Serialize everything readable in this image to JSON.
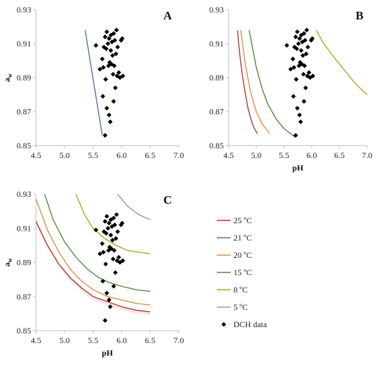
{
  "chart_data": [
    {
      "type": "scatter",
      "panel": "A",
      "xlabel": "",
      "ylabel": "aw",
      "xlim": [
        4.5,
        7.0
      ],
      "ylim": [
        0.85,
        0.93
      ],
      "xticks": [
        "4.5",
        "5.0",
        "5.5",
        "6.0",
        "6.5",
        "7.0"
      ],
      "yticks": [
        "0.85",
        "0.87",
        "0.89",
        "0.91",
        "0.93"
      ],
      "series": [
        {
          "name": "21 ºC",
          "color": "#4f6fb0",
          "kind": "line",
          "x": [
            5.36,
            5.66
          ],
          "y": [
            0.918,
            0.856
          ]
        }
      ]
    },
    {
      "type": "scatter",
      "panel": "B",
      "xlabel": "pH",
      "ylabel": "",
      "xlim": [
        4.5,
        7.0
      ],
      "ylim": [
        0.85,
        0.93
      ],
      "xticks": [
        "4.5",
        "5.0",
        "5.5",
        "6.0",
        "6.5",
        "7.0"
      ],
      "yticks": [
        "0.85",
        "0.87",
        "0.89",
        "0.91",
        "0.93"
      ],
      "series": [
        {
          "name": "25 ºC",
          "color": "#a93a3a",
          "kind": "line",
          "x": [
            4.66,
            4.7,
            4.75,
            4.8,
            4.85,
            4.9,
            4.95,
            5.02
          ],
          "y": [
            0.918,
            0.904,
            0.891,
            0.881,
            0.872,
            0.866,
            0.861,
            0.857
          ]
        },
        {
          "name": "20 ºC",
          "color": "#d9904a",
          "kind": "line",
          "x": [
            4.72,
            4.8,
            4.9,
            5.0,
            5.1,
            5.24
          ],
          "y": [
            0.918,
            0.898,
            0.881,
            0.87,
            0.863,
            0.857
          ]
        },
        {
          "name": "15 ºC",
          "color": "#4e8a3a",
          "kind": "line",
          "x": [
            4.87,
            5.0,
            5.1,
            5.2,
            5.35,
            5.5,
            5.7
          ],
          "y": [
            0.918,
            0.896,
            0.884,
            0.875,
            0.866,
            0.86,
            0.855
          ]
        },
        {
          "name": "8 ºC",
          "color": "#b8a020",
          "kind": "line",
          "x": [
            6.08,
            6.2,
            6.4,
            6.6,
            6.8,
            7.0
          ],
          "y": [
            0.918,
            0.911,
            0.902,
            0.894,
            0.886,
            0.88
          ]
        }
      ]
    },
    {
      "type": "scatter",
      "panel": "C",
      "xlabel": "pH",
      "ylabel": "aw",
      "xlim": [
        4.5,
        7.0
      ],
      "ylim": [
        0.85,
        0.93
      ],
      "xticks": [
        "4.5",
        "5.0",
        "5.5",
        "6.0",
        "6.5",
        "7.0"
      ],
      "yticks": [
        "0.85",
        "0.87",
        "0.89",
        "0.91",
        "0.93"
      ],
      "series": [
        {
          "name": "25 ºC",
          "color": "#a93a3a",
          "kind": "line",
          "x": [
            4.5,
            4.7,
            4.9,
            5.1,
            5.3,
            5.5,
            5.75,
            6.0,
            6.25,
            6.5
          ],
          "y": [
            0.914,
            0.9,
            0.889,
            0.881,
            0.875,
            0.87,
            0.867,
            0.864,
            0.862,
            0.861
          ]
        },
        {
          "name": "20 ºC",
          "color": "#d9904a",
          "kind": "line",
          "x": [
            4.5,
            4.7,
            4.9,
            5.1,
            5.3,
            5.5,
            5.75,
            6.0,
            6.25,
            6.5
          ],
          "y": [
            0.927,
            0.909,
            0.896,
            0.886,
            0.879,
            0.874,
            0.87,
            0.868,
            0.866,
            0.865
          ]
        },
        {
          "name": "15 ºC",
          "color": "#4e8a3a",
          "kind": "line",
          "x": [
            4.65,
            4.8,
            5.0,
            5.2,
            5.4,
            5.6,
            5.8,
            6.0,
            6.25,
            6.5
          ],
          "y": [
            0.93,
            0.915,
            0.902,
            0.893,
            0.886,
            0.881,
            0.878,
            0.876,
            0.874,
            0.873
          ]
        },
        {
          "name": "8 ºC",
          "color": "#b8a020",
          "kind": "line",
          "x": [
            5.2,
            5.35,
            5.5,
            5.7,
            5.9,
            6.1,
            6.3,
            6.5
          ],
          "y": [
            0.93,
            0.918,
            0.91,
            0.904,
            0.9,
            0.897,
            0.896,
            0.895
          ]
        },
        {
          "name": "5 ºC",
          "color": "#9a9a9a",
          "kind": "line",
          "x": [
            5.93,
            6.1,
            6.3,
            6.5
          ],
          "y": [
            0.93,
            0.923,
            0.918,
            0.915
          ]
        }
      ]
    }
  ],
  "dch_data": {
    "name": "DCH data",
    "color": "#000000",
    "x": [
      5.71,
      5.8,
      5.78,
      5.74,
      5.86,
      5.67,
      5.89,
      5.72,
      5.97,
      6.02,
      5.92,
      5.85,
      5.95,
      5.62,
      5.68,
      5.77,
      5.82,
      5.87,
      5.79,
      5.66,
      5.84,
      5.9,
      5.81,
      5.73,
      5.93,
      5.69,
      5.55,
      5.76,
      5.83,
      5.88,
      5.99,
      6.01,
      5.78,
      5.71,
      5.81,
      5.86,
      5.74,
      5.91
    ],
    "y": [
      0.856,
      0.864,
      0.868,
      0.872,
      0.876,
      0.879,
      0.884,
      0.889,
      0.89,
      0.891,
      0.891,
      0.892,
      0.893,
      0.895,
      0.896,
      0.897,
      0.898,
      0.897,
      0.899,
      0.901,
      0.903,
      0.904,
      0.906,
      0.907,
      0.908,
      0.908,
      0.909,
      0.91,
      0.911,
      0.912,
      0.912,
      0.913,
      0.913,
      0.914,
      0.915,
      0.916,
      0.917,
      0.918
    ]
  },
  "legend": {
    "items": [
      {
        "label": "25 ºC",
        "color": "#a93a3a",
        "kind": "line"
      },
      {
        "label": "21 ºC",
        "color": "#4f6fb0",
        "kind": "line"
      },
      {
        "label": "20 ºC",
        "color": "#d9904a",
        "kind": "line"
      },
      {
        "label": "15 ºC",
        "color": "#4e8a3a",
        "kind": "line"
      },
      {
        "label": "8 ºC",
        "color": "#b8a020",
        "kind": "line"
      },
      {
        "label": "5 ºC",
        "color": "#9a9a9a",
        "kind": "line"
      },
      {
        "label": "DCH data",
        "color": "#000000",
        "kind": "marker"
      }
    ]
  },
  "style": {
    "axis_color": "#bdbdbd",
    "text_color": "#222222",
    "area_fill": "#fbe5e5"
  }
}
